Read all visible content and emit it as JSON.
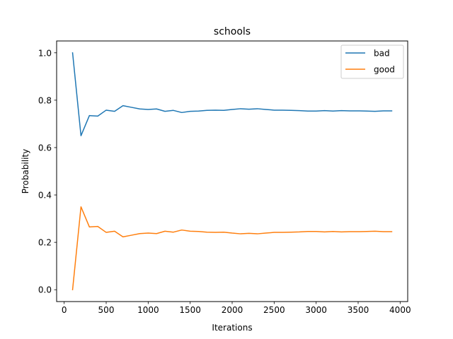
{
  "chart_data": {
    "type": "line",
    "title": "schools",
    "xlabel": "Iterations",
    "ylabel": "Probability",
    "xlim": [
      -90,
      4090
    ],
    "ylim": [
      -0.05,
      1.05
    ],
    "xticks": [
      0,
      500,
      1000,
      1500,
      2000,
      2500,
      3000,
      3500,
      4000
    ],
    "yticks": [
      0.0,
      0.2,
      0.4,
      0.6,
      0.8,
      1.0
    ],
    "ytick_labels": [
      "0.0",
      "0.2",
      "0.4",
      "0.6",
      "0.8",
      "1.0"
    ],
    "legend_position": "top-right",
    "x": [
      100,
      200,
      300,
      400,
      500,
      600,
      700,
      800,
      900,
      1000,
      1100,
      1200,
      1300,
      1400,
      1500,
      1600,
      1700,
      1800,
      1900,
      2000,
      2100,
      2200,
      2300,
      2400,
      2500,
      2600,
      2700,
      2800,
      2900,
      3000,
      3100,
      3200,
      3300,
      3400,
      3500,
      3600,
      3700,
      3800,
      3900
    ],
    "series": [
      {
        "name": "bad",
        "color": "#1f77b4",
        "values": [
          1.0,
          0.65,
          0.735,
          0.733,
          0.758,
          0.753,
          0.777,
          0.77,
          0.763,
          0.761,
          0.763,
          0.753,
          0.757,
          0.748,
          0.753,
          0.754,
          0.757,
          0.758,
          0.757,
          0.761,
          0.764,
          0.762,
          0.764,
          0.761,
          0.758,
          0.758,
          0.757,
          0.756,
          0.754,
          0.754,
          0.756,
          0.754,
          0.756,
          0.755,
          0.755,
          0.754,
          0.753,
          0.755,
          0.755
        ]
      },
      {
        "name": "good",
        "color": "#ff7f0e",
        "values": [
          0.0,
          0.35,
          0.265,
          0.267,
          0.242,
          0.247,
          0.223,
          0.23,
          0.237,
          0.239,
          0.237,
          0.247,
          0.243,
          0.252,
          0.247,
          0.246,
          0.243,
          0.242,
          0.243,
          0.239,
          0.236,
          0.238,
          0.236,
          0.239,
          0.242,
          0.242,
          0.243,
          0.244,
          0.246,
          0.246,
          0.244,
          0.246,
          0.244,
          0.245,
          0.245,
          0.246,
          0.247,
          0.245,
          0.245
        ]
      }
    ]
  }
}
